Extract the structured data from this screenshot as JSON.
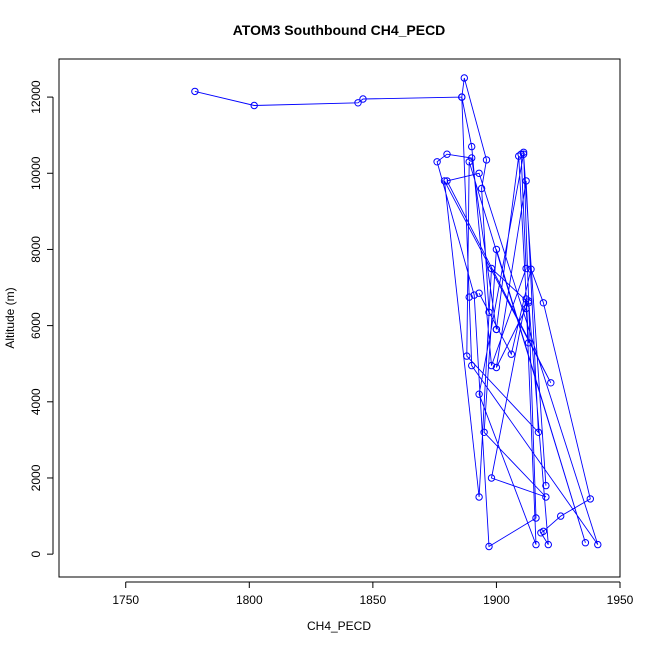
{
  "chart_data": {
    "type": "line",
    "title": "ATOM3 Southbound CH4_PECD",
    "xlabel": "CH4_PECD",
    "ylabel": "Altitude (m)",
    "xlim": [
      1723,
      1950
    ],
    "ylim": [
      -600,
      13000
    ],
    "x_ticks": [
      1750,
      1800,
      1850,
      1900,
      1950
    ],
    "y_ticks": [
      0,
      2000,
      4000,
      6000,
      8000,
      10000,
      12000
    ],
    "line_color": "#0000ff",
    "marker": "open-circle",
    "grid": false,
    "legend": "none",
    "series": [
      {
        "x": [
          1778,
          1802,
          1844,
          1846,
          1886,
          1887,
          1896,
          1894,
          1897,
          1893,
          1906,
          1914,
          1919,
          1938,
          1926,
          1919,
          1918,
          1921,
          1913,
          1912,
          1913,
          1909,
          1900,
          1900,
          1890,
          1880,
          1876,
          1891,
          1897,
          1916,
          1911,
          1910,
          1912,
          1898,
          1890,
          1886,
          1889,
          1890,
          1941,
          1893,
          1880,
          1922,
          1879,
          1893,
          1898,
          1913,
          1900,
          1912,
          1917,
          1888,
          1889,
          1936,
          1900,
          1895,
          1920,
          1898,
          1912,
          1916,
          1893,
          1911,
          1920
        ],
        "y": [
          12150,
          11780,
          11850,
          11950,
          12000,
          12500,
          10350,
          9600,
          6350,
          6850,
          5250,
          7480,
          6600,
          1450,
          1000,
          600,
          560,
          250,
          6650,
          6450,
          5550,
          10450,
          5900,
          5900,
          10400,
          10500,
          10300,
          6800,
          200,
          950,
          10550,
          10500,
          7500,
          4950,
          10700,
          12000,
          6750,
          4950,
          250,
          10000,
          9800,
          4500,
          9800,
          1500,
          7500,
          6600,
          4900,
          9800,
          3200,
          5200,
          10300,
          300,
          8000,
          3200,
          1500,
          2000,
          6700,
          250,
          4200,
          10500,
          1800
        ]
      }
    ]
  }
}
